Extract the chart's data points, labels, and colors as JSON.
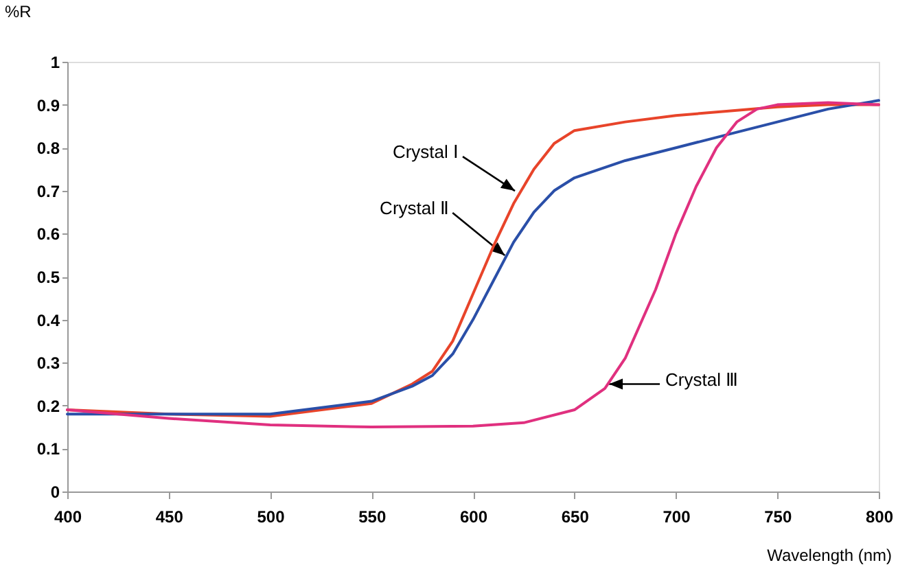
{
  "chart_data": {
    "type": "line",
    "xlabel": "Wavelength (nm)",
    "ylabel": "%R",
    "xlim": [
      400,
      800
    ],
    "xticks": [
      400,
      450,
      500,
      550,
      600,
      650,
      700,
      750,
      800
    ],
    "ylim": [
      0,
      1
    ],
    "yticks": [
      0,
      0.1,
      0.2,
      0.3,
      0.4,
      0.5,
      0.6,
      0.7,
      0.8,
      0.9,
      1
    ],
    "grid": false,
    "legend": false,
    "line_style": "solid",
    "annotations": [
      {
        "text": "Crystal Ⅰ",
        "x": 622,
        "y": 0.69
      },
      {
        "text": "Crystal Ⅱ",
        "x": 617,
        "y": 0.54
      },
      {
        "text": "Crystal Ⅲ",
        "x": 665,
        "y": 0.25
      }
    ],
    "series": [
      {
        "color": "#e8442a",
        "x": [
          400,
          450,
          500,
          550,
          570,
          580,
          590,
          600,
          610,
          620,
          630,
          640,
          650,
          675,
          700,
          725,
          750,
          775,
          800
        ],
        "values": [
          0.19,
          0.18,
          0.175,
          0.205,
          0.25,
          0.28,
          0.35,
          0.46,
          0.57,
          0.67,
          0.75,
          0.81,
          0.84,
          0.86,
          0.875,
          0.885,
          0.895,
          0.9,
          0.9
        ]
      },
      {
        "color": "#2a4fa8",
        "x": [
          400,
          450,
          500,
          550,
          570,
          580,
          590,
          600,
          610,
          620,
          630,
          640,
          650,
          675,
          700,
          725,
          750,
          775,
          800
        ],
        "values": [
          0.18,
          0.18,
          0.18,
          0.21,
          0.245,
          0.27,
          0.32,
          0.4,
          0.49,
          0.58,
          0.65,
          0.7,
          0.73,
          0.77,
          0.8,
          0.83,
          0.86,
          0.89,
          0.91
        ]
      },
      {
        "color": "#e0307f",
        "x": [
          400,
          450,
          500,
          550,
          600,
          625,
          650,
          665,
          675,
          690,
          700,
          710,
          720,
          730,
          740,
          750,
          775,
          800
        ],
        "values": [
          0.19,
          0.17,
          0.155,
          0.15,
          0.152,
          0.16,
          0.19,
          0.24,
          0.31,
          0.47,
          0.6,
          0.71,
          0.8,
          0.86,
          0.89,
          0.9,
          0.905,
          0.9
        ]
      }
    ]
  }
}
